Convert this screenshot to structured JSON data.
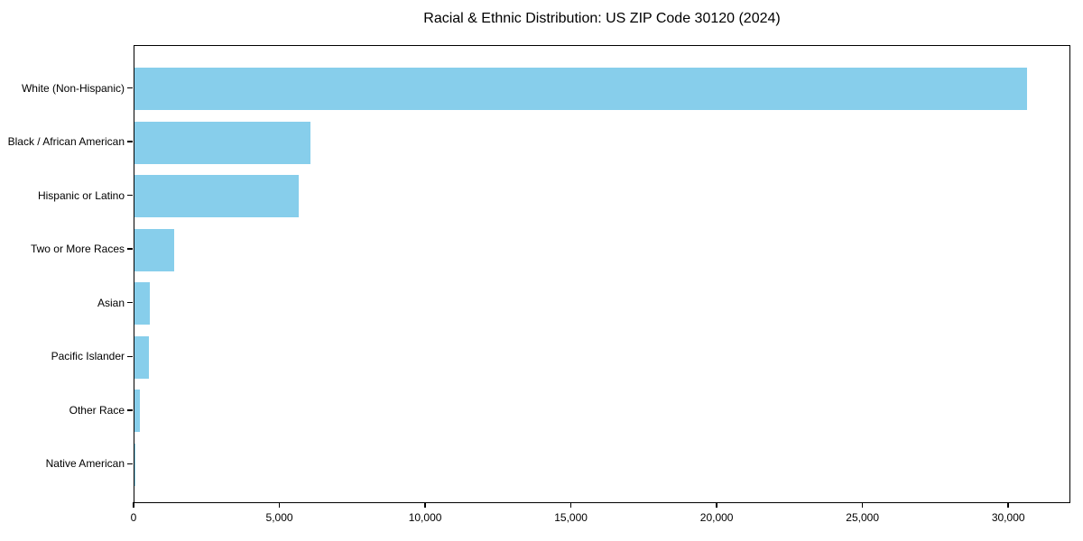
{
  "chart_data": {
    "type": "bar",
    "orientation": "horizontal",
    "title": "Racial & Ethnic Distribution: US ZIP Code 30120 (2024)",
    "categories": [
      "White (Non-Hispanic)",
      "Black / African American",
      "Hispanic or Latino",
      "Two or More Races",
      "Asian",
      "Pacific Islander",
      "Other Race",
      "Native American"
    ],
    "values": [
      30600,
      6050,
      5620,
      1360,
      540,
      490,
      180,
      20
    ],
    "xlabel": "",
    "ylabel": "",
    "xlim": [
      0,
      32130
    ],
    "xticks": [
      0,
      5000,
      10000,
      15000,
      20000,
      25000,
      30000
    ],
    "xtick_labels": [
      "0",
      "5,000",
      "10,000",
      "15,000",
      "20,000",
      "25,000",
      "30,000"
    ],
    "bar_color": "#87CEEB",
    "axis_color": "#000000",
    "background_color": "#ffffff",
    "grid": false,
    "legend": null
  }
}
